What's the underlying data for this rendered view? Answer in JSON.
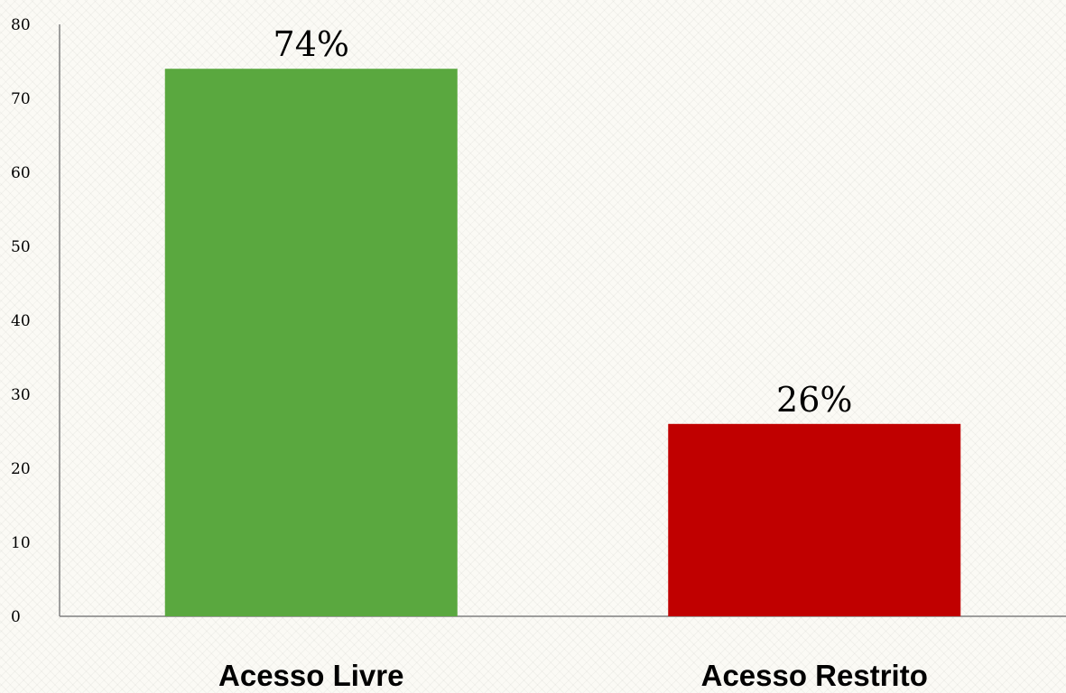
{
  "chart_data": {
    "type": "bar",
    "categories": [
      "Acesso Livre",
      "Acesso Restrito"
    ],
    "values": [
      74,
      26
    ],
    "data_labels": [
      "74%",
      "26%"
    ],
    "bar_colors": [
      "#5aa83f",
      "#c00000"
    ],
    "ylim": [
      0,
      80
    ],
    "yticks": [
      0,
      10,
      20,
      30,
      40,
      50,
      60,
      70,
      80
    ],
    "title": "",
    "xlabel": "",
    "ylabel": "",
    "grid": false,
    "legend": "none"
  }
}
